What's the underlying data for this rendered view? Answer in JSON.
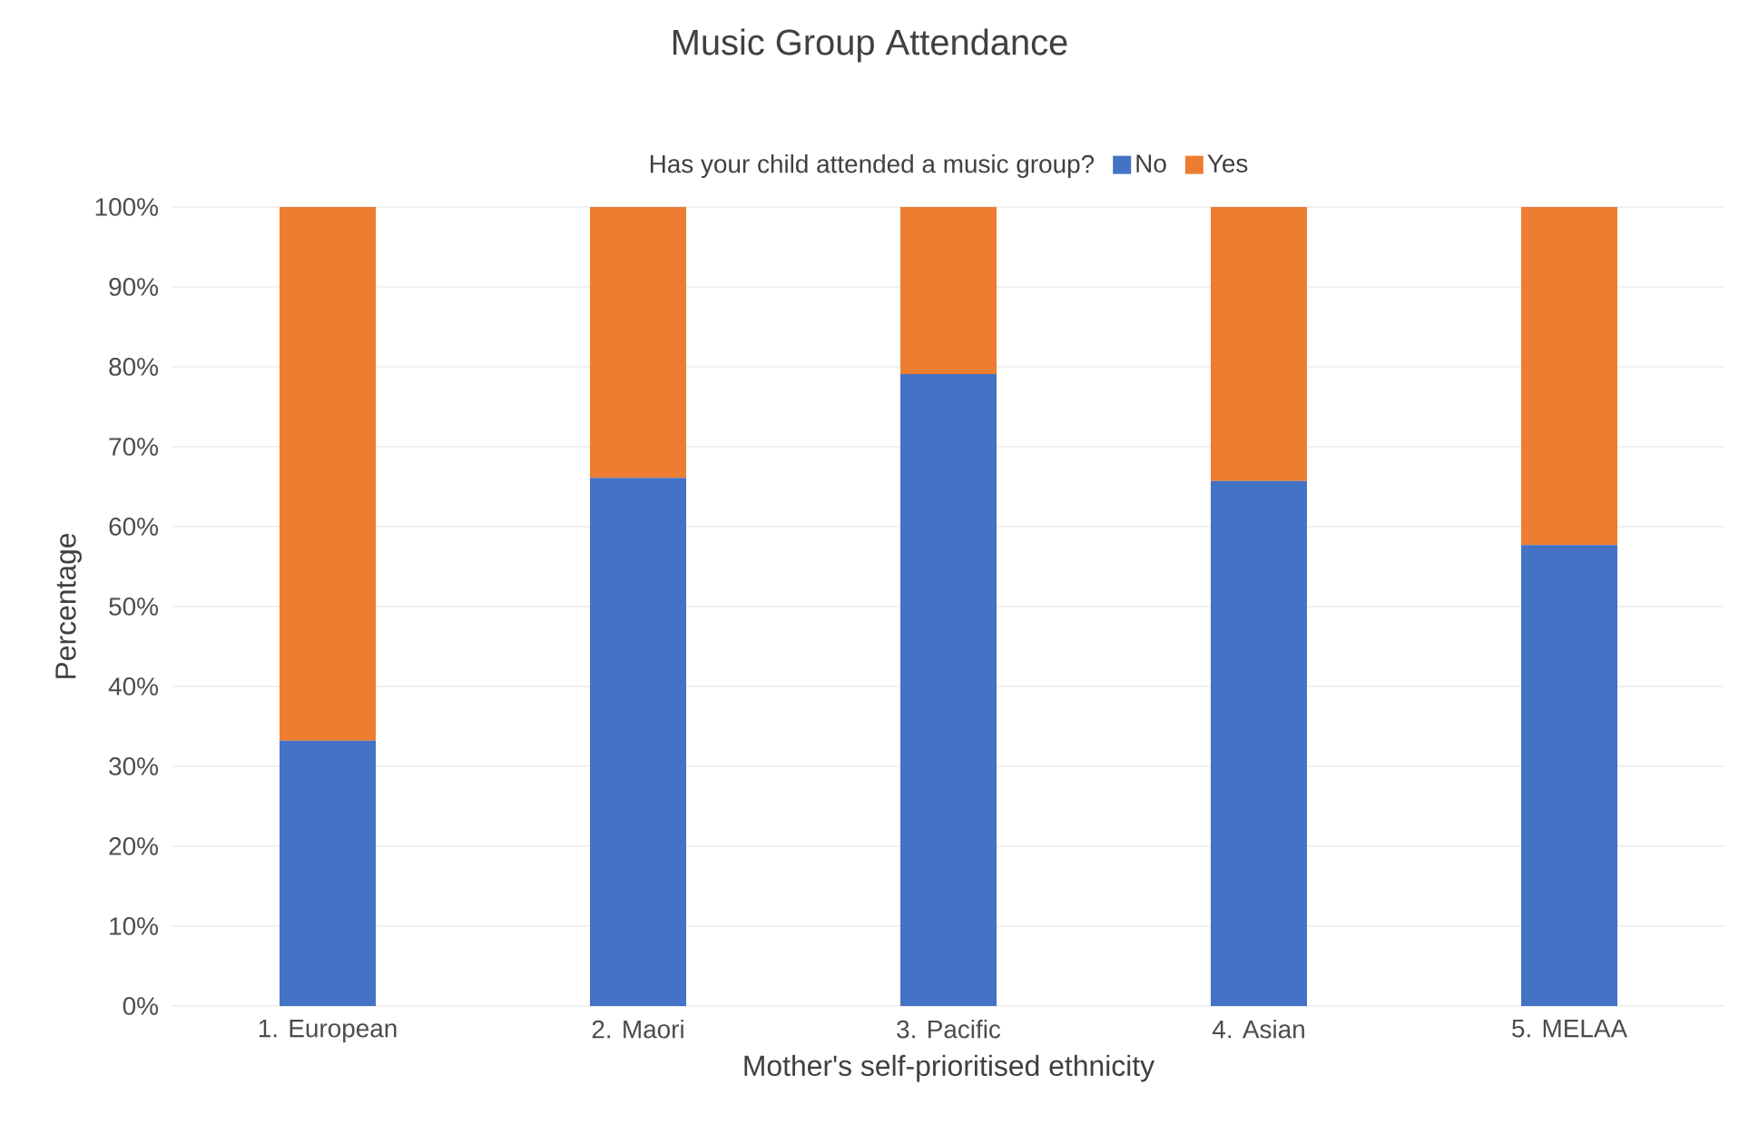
{
  "chart_data": {
    "type": "bar",
    "title": "Music Group Attendance",
    "xlabel": "Mother's self-prioritised ethnicity",
    "ylabel": "Percentage",
    "legend_title": "Has your child attended a music group?",
    "categories": [
      "1. European",
      "2. Maori",
      "3. Pacific",
      "4. Asian",
      "5. MELAA"
    ],
    "stacked": true,
    "series": [
      {
        "name": "No",
        "color": "#4472c4",
        "values": [
          33.2,
          66.1,
          79.1,
          65.7,
          57.7
        ]
      },
      {
        "name": "Yes",
        "color": "#ed7d31",
        "values": [
          66.8,
          33.9,
          20.9,
          34.3,
          42.3
        ]
      }
    ],
    "ylim": [
      0,
      100
    ],
    "yticks": [
      {
        "value": 0,
        "label": "0%"
      },
      {
        "value": 10,
        "label": "10%"
      },
      {
        "value": 20,
        "label": "20%"
      },
      {
        "value": 30,
        "label": "30%"
      },
      {
        "value": 40,
        "label": "40%"
      },
      {
        "value": 50,
        "label": "50%"
      },
      {
        "value": 60,
        "label": "60%"
      },
      {
        "value": 70,
        "label": "70%"
      },
      {
        "value": 80,
        "label": "80%"
      },
      {
        "value": 90,
        "label": "90%"
      },
      {
        "value": 100,
        "label": "100%"
      }
    ],
    "grid": "y",
    "legend": "top"
  }
}
